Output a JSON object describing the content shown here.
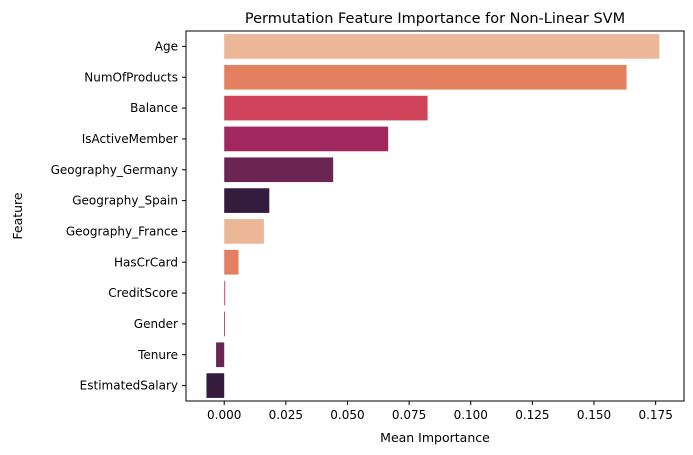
{
  "chart_data": {
    "type": "bar",
    "orientation": "horizontal",
    "title": "Permutation Feature Importance for Non-Linear SVM",
    "xlabel": "Mean Importance",
    "ylabel": "Feature",
    "categories": [
      "Age",
      "NumOfProducts",
      "Balance",
      "IsActiveMember",
      "Geography_Germany",
      "Geography_Spain",
      "Geography_France",
      "HasCrCard",
      "CreditScore",
      "Gender",
      "Tenure",
      "EstimatedSalary"
    ],
    "values": [
      0.1765,
      0.1632,
      0.0825,
      0.0665,
      0.0442,
      0.0183,
      0.0161,
      0.0058,
      0.0004,
      0.0002,
      -0.0033,
      -0.0072
    ],
    "colors": [
      "#ebb797",
      "#e2805f",
      "#d0435a",
      "#a0285e",
      "#6a2553",
      "#351b3e",
      "#ebb797",
      "#e2805f",
      "#d0435a",
      "#a0285e",
      "#6a2553",
      "#351b3e"
    ],
    "xlim": [
      -0.0155,
      0.1865
    ],
    "xticks": [
      0.0,
      0.025,
      0.05,
      0.075,
      0.1,
      0.125,
      0.15,
      0.175
    ],
    "xtick_labels": [
      "0.000",
      "0.025",
      "0.050",
      "0.075",
      "0.100",
      "0.125",
      "0.150",
      "0.175"
    ],
    "grid": false,
    "legend": "none"
  }
}
